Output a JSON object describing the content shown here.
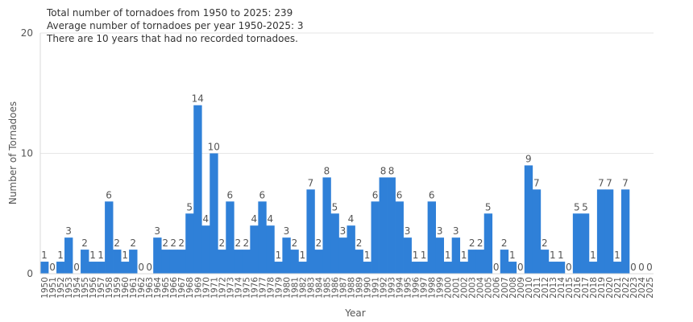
{
  "annotations": [
    "Total number of tornadoes from 1950 to 2025: 239",
    "Average number of tornadoes per year 1950-2025: 3",
    "There are 10 years that had no recorded tornadoes."
  ],
  "chart_data": {
    "type": "bar",
    "title": "",
    "xlabel": "Year",
    "ylabel": "Number of Tornadoes",
    "ylim": [
      0,
      20
    ],
    "yticks": [
      0,
      10,
      20
    ],
    "grid": true,
    "bar_color": "#2f80d8",
    "categories": [
      "1950",
      "1951",
      "1952",
      "1953",
      "1954",
      "1955",
      "1956",
      "1957",
      "1958",
      "1959",
      "1960",
      "1961",
      "1962",
      "1963",
      "1964",
      "1965",
      "1966",
      "1967",
      "1968",
      "1969",
      "1970",
      "1971",
      "1972",
      "1973",
      "1974",
      "1975",
      "1976",
      "1977",
      "1978",
      "1979",
      "1980",
      "1981",
      "1982",
      "1983",
      "1984",
      "1985",
      "1986",
      "1987",
      "1988",
      "1989",
      "1990",
      "1991",
      "1992",
      "1993",
      "1994",
      "1995",
      "1996",
      "1997",
      "1998",
      "1999",
      "2000",
      "2001",
      "2002",
      "2003",
      "2004",
      "2005",
      "2006",
      "2007",
      "2008",
      "2009",
      "2010",
      "2011",
      "2012",
      "2013",
      "2014",
      "2015",
      "2016",
      "2017",
      "2018",
      "2019",
      "2020",
      "2021",
      "2022",
      "2023",
      "2024",
      "2025"
    ],
    "values": [
      1,
      0,
      1,
      3,
      0,
      2,
      1,
      1,
      6,
      2,
      1,
      2,
      0,
      0,
      3,
      2,
      2,
      2,
      5,
      14,
      4,
      10,
      2,
      6,
      2,
      2,
      4,
      6,
      4,
      1,
      3,
      2,
      1,
      7,
      2,
      8,
      5,
      3,
      4,
      2,
      1,
      6,
      8,
      8,
      6,
      3,
      1,
      1,
      6,
      3,
      1,
      3,
      1,
      2,
      2,
      5,
      0,
      2,
      1,
      0,
      9,
      7,
      2,
      1,
      1,
      0,
      5,
      5,
      1,
      7,
      7,
      1,
      7,
      0,
      0,
      0
    ]
  }
}
